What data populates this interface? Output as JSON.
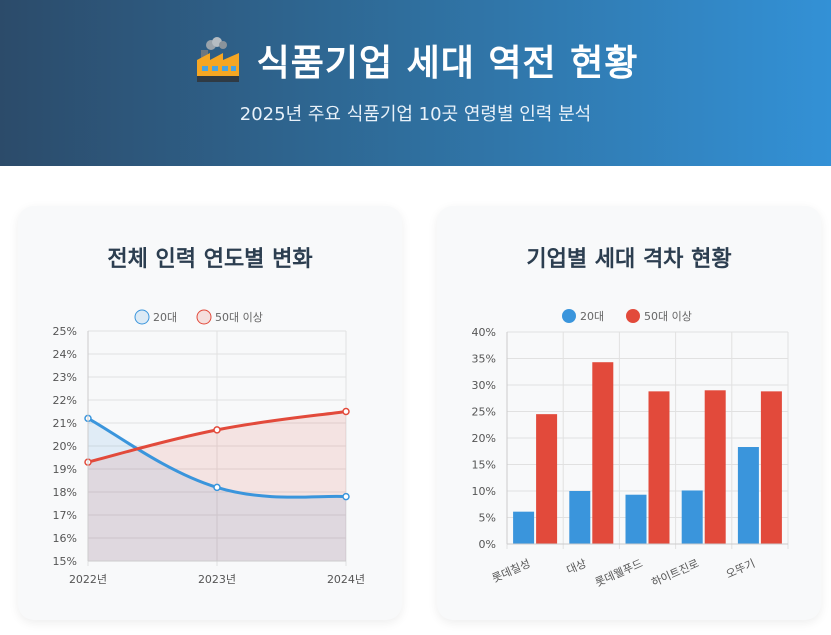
{
  "header": {
    "icon": "factory-icon",
    "title": "식품기업 세대 역전 현황",
    "subtitle": "2025년 주요 식품기업 10곳 연령별 인력 분석"
  },
  "colors": {
    "blue": "#3a95dc",
    "red": "#e24a3b"
  },
  "chart_data": [
    {
      "type": "line",
      "title": "전체 인력 연도별 변화",
      "x": [
        "2022년",
        "2023년",
        "2024년"
      ],
      "series": [
        {
          "name": "20대",
          "values": [
            21.2,
            18.2,
            17.8
          ]
        },
        {
          "name": "50대 이상",
          "values": [
            19.3,
            20.7,
            21.5
          ]
        }
      ],
      "ylim": [
        15,
        25
      ],
      "yticks": [
        "15%",
        "16%",
        "17%",
        "18%",
        "19%",
        "20%",
        "21%",
        "22%",
        "23%",
        "24%",
        "25%"
      ],
      "legend": "top"
    },
    {
      "type": "bar",
      "title": "기업별 세대 격차 현황",
      "categories": [
        "롯데칠성",
        "대상",
        "롯데웰푸드",
        "하이트진로",
        "오뚜기"
      ],
      "series": [
        {
          "name": "20대",
          "values": [
            6.1,
            10.0,
            9.3,
            10.1,
            18.3
          ]
        },
        {
          "name": "50대 이상",
          "values": [
            24.5,
            34.3,
            28.8,
            29.0,
            28.8
          ]
        }
      ],
      "ylim": [
        0,
        40
      ],
      "yticks": [
        "0%",
        "5%",
        "10%",
        "15%",
        "20%",
        "25%",
        "30%",
        "35%",
        "40%"
      ],
      "legend": "top"
    }
  ]
}
